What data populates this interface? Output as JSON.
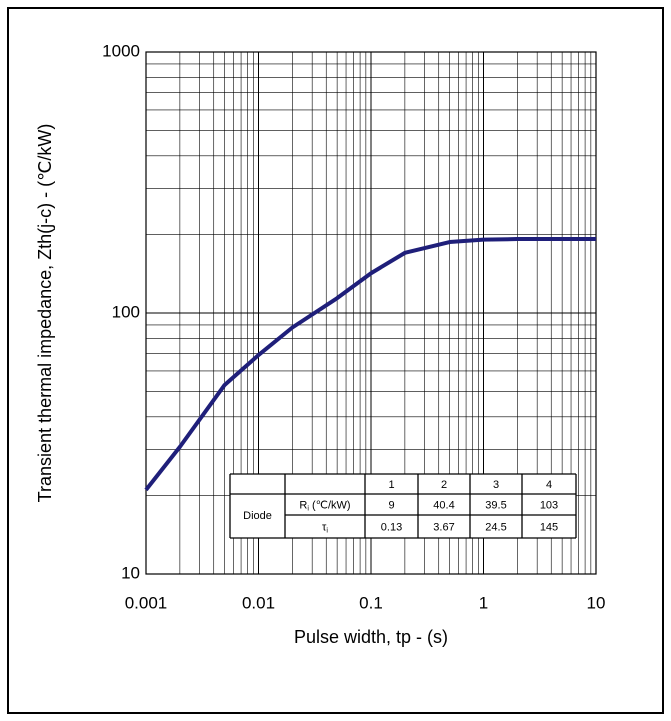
{
  "chart_data": {
    "type": "line",
    "x_label": "Pulse width, tp - (s)",
    "y_label": "Transient thermal impedance, Zth(j-c) - (℃/kW)",
    "x": [
      0.001,
      0.002,
      0.005,
      0.01,
      0.02,
      0.05,
      0.1,
      0.2,
      0.5,
      1,
      2,
      5,
      10
    ],
    "series": [
      {
        "name": "Diode",
        "color": "#1f1f7a",
        "values": [
          21,
          30.7,
          53,
          69,
          88,
          114,
          142,
          170,
          187,
          191,
          192,
          192,
          192
        ]
      }
    ],
    "xlim": [
      0.001,
      10
    ],
    "ylim": [
      10,
      1000
    ],
    "xticks": [
      0.001,
      0.01,
      0.1,
      1,
      10
    ],
    "yticks": [
      10,
      100,
      1000
    ],
    "xlog": true,
    "ylog": true,
    "grid": true,
    "table": {
      "header": [
        "1",
        "2",
        "3",
        "4"
      ],
      "group": "Diode",
      "rows": [
        {
          "symbol": "R",
          "sub": "i",
          "unit": " (℃/kW)",
          "values": [
            9,
            40.4,
            39.5,
            103
          ]
        },
        {
          "symbol": "τ",
          "sub": "i",
          "unit": "",
          "values": [
            0.13,
            3.67,
            24.5,
            145
          ]
        }
      ]
    }
  }
}
